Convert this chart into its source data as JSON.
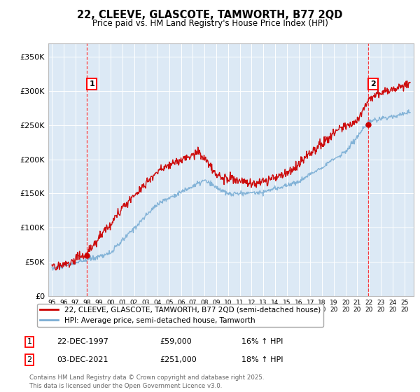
{
  "title": "22, CLEEVE, GLASCOTE, TAMWORTH, B77 2QD",
  "subtitle": "Price paid vs. HM Land Registry's House Price Index (HPI)",
  "legend_line1": "22, CLEEVE, GLASCOTE, TAMWORTH, B77 2QD (semi-detached house)",
  "legend_line2": "HPI: Average price, semi-detached house, Tamworth",
  "annotation1_label": "1",
  "annotation1_date": "22-DEC-1997",
  "annotation1_price": "£59,000",
  "annotation1_hpi": "16% ↑ HPI",
  "annotation1_year": 1997.97,
  "annotation1_value": 59000,
  "annotation2_label": "2",
  "annotation2_date": "03-DEC-2021",
  "annotation2_price": "£251,000",
  "annotation2_hpi": "18% ↑ HPI",
  "annotation2_year": 2021.92,
  "annotation2_value": 251000,
  "ylim": [
    0,
    370000
  ],
  "yticks": [
    0,
    50000,
    100000,
    150000,
    200000,
    250000,
    300000,
    350000
  ],
  "ytick_labels": [
    "£0",
    "£50K",
    "£100K",
    "£150K",
    "£200K",
    "£250K",
    "£300K",
    "£350K"
  ],
  "background_color": "#dce9f5",
  "fig_bg_color": "#ffffff",
  "line_color_red": "#cc0000",
  "line_color_blue": "#7aadd4",
  "footnote": "Contains HM Land Registry data © Crown copyright and database right 2025.\nThis data is licensed under the Open Government Licence v3.0.",
  "xlim_start": 1994.7,
  "xlim_end": 2025.8
}
